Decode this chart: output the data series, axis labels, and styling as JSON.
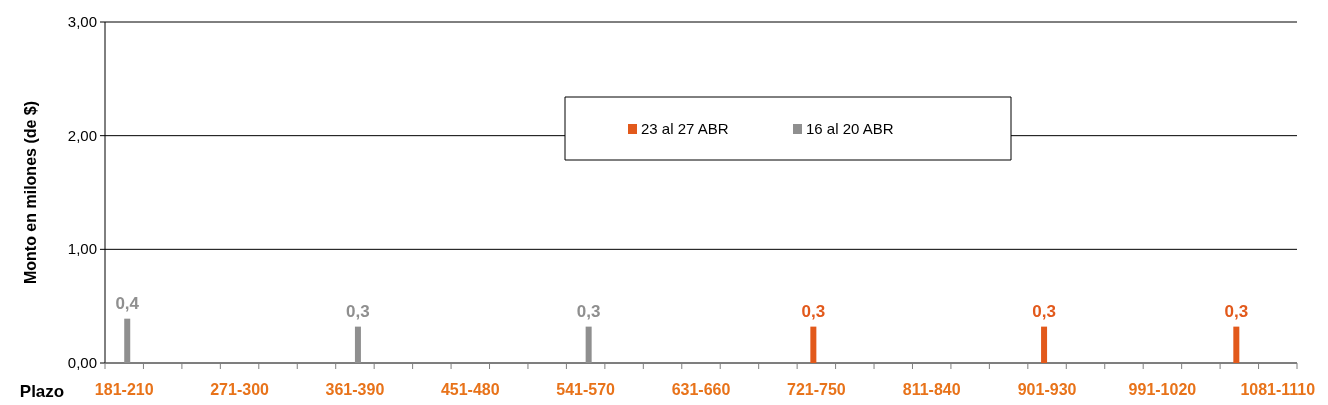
{
  "chart_data": {
    "type": "bar",
    "xlabel": "Plazo",
    "ylabel": "Monto en  milones (de $)",
    "categories": [
      "181-210",
      null,
      null,
      "271-300",
      null,
      null,
      "361-390",
      null,
      null,
      "451-480",
      null,
      null,
      "541-570",
      null,
      null,
      "631-660",
      null,
      null,
      "721-750",
      null,
      null,
      "811-840",
      null,
      null,
      "901-930",
      null,
      null,
      "991-1020",
      null,
      null,
      "1081-1110"
    ],
    "series": [
      {
        "name": "23 al 27 ABR",
        "color": "#e2591b",
        "values": [
          null,
          null,
          null,
          null,
          null,
          null,
          null,
          null,
          null,
          null,
          null,
          null,
          null,
          null,
          null,
          null,
          null,
          null,
          0.32,
          null,
          null,
          null,
          null,
          null,
          0.32,
          null,
          null,
          null,
          null,
          0.32,
          null
        ],
        "value_labels": [
          null,
          null,
          null,
          null,
          null,
          null,
          null,
          null,
          null,
          null,
          null,
          null,
          null,
          null,
          null,
          null,
          null,
          null,
          "0,3",
          null,
          null,
          null,
          null,
          null,
          "0,3",
          null,
          null,
          null,
          null,
          "0,3",
          null
        ]
      },
      {
        "name": "16 al 20 ABR",
        "color": "#8f8f8f",
        "values": [
          0.39,
          null,
          null,
          null,
          null,
          null,
          0.32,
          null,
          null,
          null,
          null,
          null,
          0.32,
          null,
          null,
          null,
          null,
          null,
          null,
          null,
          null,
          null,
          null,
          null,
          null,
          null,
          null,
          null,
          null,
          null,
          null
        ],
        "value_labels": [
          "0,4",
          null,
          null,
          null,
          null,
          null,
          "0,3",
          null,
          null,
          null,
          null,
          null,
          "0,3",
          null,
          null,
          null,
          null,
          null,
          null,
          null,
          null,
          null,
          null,
          null,
          null,
          null,
          null,
          null,
          null,
          null,
          null
        ]
      }
    ],
    "ylim": [
      0,
      3
    ],
    "yticks": [
      {
        "value": 0,
        "label": "0,00"
      },
      {
        "value": 1,
        "label": "1,00"
      },
      {
        "value": 2,
        "label": "2,00"
      },
      {
        "value": 3,
        "label": "3,00"
      }
    ],
    "grid": "y",
    "legend": "top"
  }
}
